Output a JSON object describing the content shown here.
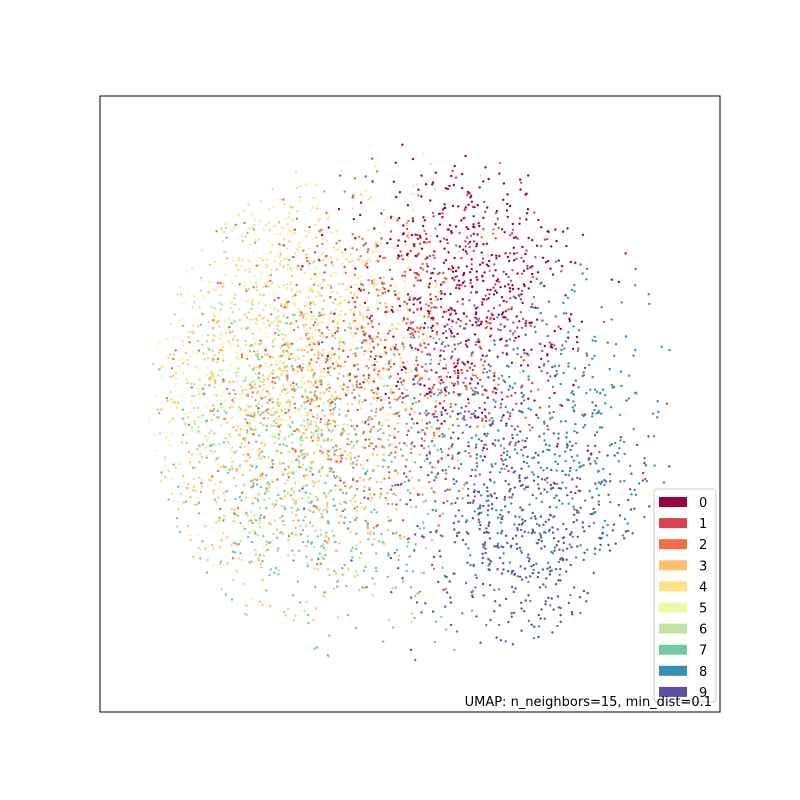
{
  "chart_data": {
    "type": "scatter",
    "annotation": "UMAP: n_neighbors=15, min_dist=0.1",
    "axes": {
      "ticks_visible": false,
      "grid": false,
      "frame": true
    },
    "point_size": "tiny",
    "legend": {
      "placement": "bottom-right",
      "entries": [
        {
          "label": "0",
          "color": "#9e0142"
        },
        {
          "label": "1",
          "color": "#d8434e"
        },
        {
          "label": "2",
          "color": "#f46d43"
        },
        {
          "label": "3",
          "color": "#fdbf6f"
        },
        {
          "label": "4",
          "color": "#fee08b"
        },
        {
          "label": "5",
          "color": "#f0f9a8"
        },
        {
          "label": "6",
          "color": "#bfe5a0"
        },
        {
          "label": "7",
          "color": "#74c7a5"
        },
        {
          "label": "8",
          "color": "#378ebb"
        },
        {
          "label": "9",
          "color": "#5e4fa2"
        }
      ]
    },
    "description_of_distribution": "approximately 5000 points forming a roughly circular cloud; classes 3–7 concentrated on the left, classes 0–1 upper-center/right, classes 8–9 on the right and lower right",
    "series": [
      {
        "label": "0",
        "center": [
          0.6,
          0.72
        ],
        "spread": [
          0.16,
          0.2
        ]
      },
      {
        "label": "1",
        "center": [
          0.55,
          0.62
        ],
        "spread": [
          0.2,
          0.22
        ]
      },
      {
        "label": "2",
        "center": [
          0.4,
          0.55
        ],
        "spread": [
          0.22,
          0.24
        ]
      },
      {
        "label": "3",
        "center": [
          0.3,
          0.45
        ],
        "spread": [
          0.2,
          0.25
        ]
      },
      {
        "label": "4",
        "center": [
          0.33,
          0.68
        ],
        "spread": [
          0.2,
          0.2
        ]
      },
      {
        "label": "5",
        "center": [
          0.22,
          0.55
        ],
        "spread": [
          0.18,
          0.24
        ]
      },
      {
        "label": "6",
        "center": [
          0.25,
          0.48
        ],
        "spread": [
          0.18,
          0.25
        ]
      },
      {
        "label": "7",
        "center": [
          0.32,
          0.4
        ],
        "spread": [
          0.22,
          0.25
        ]
      },
      {
        "label": "8",
        "center": [
          0.72,
          0.45
        ],
        "spread": [
          0.18,
          0.24
        ]
      },
      {
        "label": "9",
        "center": [
          0.7,
          0.3
        ],
        "spread": [
          0.18,
          0.18
        ]
      }
    ],
    "points_per_series": 500
  }
}
